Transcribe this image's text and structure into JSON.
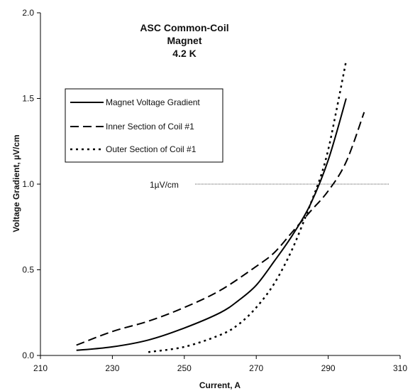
{
  "chart_data": {
    "type": "line",
    "title_lines": [
      "ASC Common-Coil",
      "Magnet",
      "4.2 K"
    ],
    "xlabel": "Current, A",
    "ylabel": "Voltage Gradient, µV/cm",
    "xlim": [
      210,
      310
    ],
    "ylim": [
      0,
      2.0
    ],
    "x_ticks": [
      210,
      230,
      250,
      270,
      290,
      310
    ],
    "x_tick_labels": [
      "210",
      "230",
      "250",
      "270",
      "290",
      "310"
    ],
    "y_ticks": [
      0,
      0.5,
      1.0,
      1.5,
      2.0
    ],
    "y_tick_labels": [
      "0.0",
      "0.5",
      "1.0",
      "1.5",
      "2.0"
    ],
    "grid": false,
    "legend_position": "upper-left",
    "series": [
      {
        "name": "Magnet Voltage Gradient",
        "style": "solid",
        "color": "#000000",
        "x": [
          220,
          230,
          240,
          250,
          260,
          265,
          270,
          275,
          280,
          285,
          290,
          295
        ],
        "y": [
          0.03,
          0.05,
          0.09,
          0.16,
          0.25,
          0.32,
          0.41,
          0.55,
          0.7,
          0.88,
          1.14,
          1.5
        ]
      },
      {
        "name": "Inner Section of Coil #1",
        "style": "dashed",
        "color": "#000000",
        "x": [
          220,
          230,
          240,
          250,
          260,
          270,
          275,
          280,
          285,
          290,
          295,
          300
        ],
        "y": [
          0.06,
          0.14,
          0.2,
          0.28,
          0.38,
          0.52,
          0.6,
          0.72,
          0.84,
          0.96,
          1.13,
          1.42
        ]
      },
      {
        "name": "Outer Section of Coil #1",
        "style": "dotted",
        "color": "#000000",
        "x": [
          240,
          250,
          260,
          265,
          270,
          275,
          280,
          285,
          288,
          290,
          292,
          295
        ],
        "y": [
          0.02,
          0.05,
          0.12,
          0.18,
          0.28,
          0.42,
          0.62,
          0.88,
          1.05,
          1.2,
          1.4,
          1.72
        ]
      }
    ],
    "reference_line": {
      "label": "1µV/cm",
      "y": 1.0,
      "x_start": 253,
      "x_end": 307
    }
  }
}
